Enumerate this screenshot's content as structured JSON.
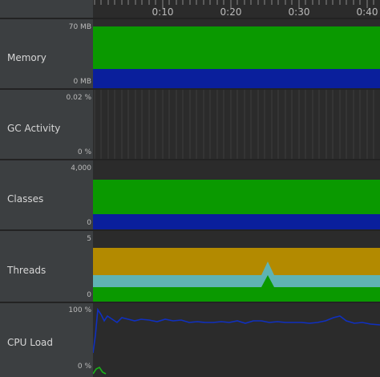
{
  "timeline": {
    "ticks": [
      "0:10",
      "0:20",
      "0:30",
      "0:40"
    ]
  },
  "rows": {
    "memory": {
      "label": "Memory",
      "scale_max": "70 MB",
      "scale_min": "0 MB",
      "colors": {
        "upper": "#0a9900",
        "lower": "#0a1f9c"
      }
    },
    "gc": {
      "label": "GC Activity",
      "scale_max": "0.02 %",
      "scale_min": "0 %"
    },
    "classes": {
      "label": "Classes",
      "scale_max": "4,000",
      "scale_min": "0",
      "colors": {
        "upper": "#0a9900",
        "lower": "#0a1f9c"
      }
    },
    "threads": {
      "label": "Threads",
      "scale_max": "5",
      "scale_min": "0",
      "colors": {
        "top": "#b38a00",
        "middle": "#5fb3b3",
        "bottom": "#0a9900"
      }
    },
    "cpu": {
      "label": "CPU Load",
      "scale_max": "100 %",
      "scale_min": "0 %",
      "colors": {
        "line": "#1030c0",
        "low": "#19b319"
      }
    }
  }
}
